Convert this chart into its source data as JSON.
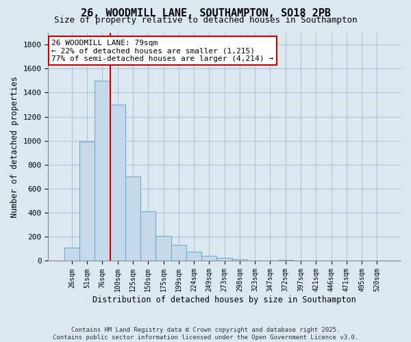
{
  "title": "26, WOODMILL LANE, SOUTHAMPTON, SO18 2PB",
  "subtitle": "Size of property relative to detached houses in Southampton",
  "xlabel": "Distribution of detached houses by size in Southampton",
  "ylabel": "Number of detached properties",
  "bar_labels": [
    "26sqm",
    "51sqm",
    "76sqm",
    "100sqm",
    "125sqm",
    "150sqm",
    "175sqm",
    "199sqm",
    "224sqm",
    "249sqm",
    "273sqm",
    "298sqm",
    "323sqm",
    "347sqm",
    "372sqm",
    "397sqm",
    "421sqm",
    "446sqm",
    "471sqm",
    "495sqm",
    "520sqm"
  ],
  "bar_values": [
    110,
    990,
    1500,
    1300,
    700,
    410,
    210,
    135,
    75,
    40,
    25,
    15,
    5,
    0,
    10,
    0,
    0,
    0,
    0,
    0,
    0
  ],
  "bar_color": "#c6d9ea",
  "bar_edge_color": "#6aaed6",
  "ylim": [
    0,
    1900
  ],
  "yticks": [
    0,
    200,
    400,
    600,
    800,
    1000,
    1200,
    1400,
    1600,
    1800
  ],
  "vline_index": 2,
  "vline_color": "#cc0000",
  "annotation_title": "26 WOODMILL LANE: 79sqm",
  "annotation_line1": "← 22% of detached houses are smaller (1,215)",
  "annotation_line2": "77% of semi-detached houses are larger (4,214) →",
  "annotation_box_color": "#ffffff",
  "annotation_box_edge": "#cc0000",
  "background_color": "#dce8f0",
  "grid_color": "#b0c4d8",
  "footer_line1": "Contains HM Land Registry data © Crown copyright and database right 2025.",
  "footer_line2": "Contains public sector information licensed under the Open Government Licence v3.0."
}
